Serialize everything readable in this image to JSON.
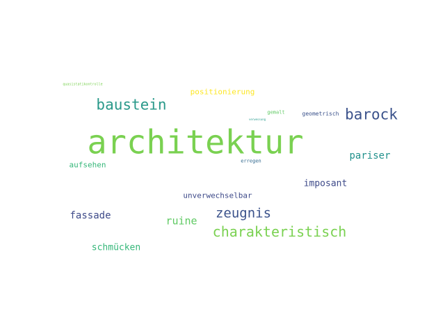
{
  "wordcloud": {
    "words": [
      {
        "text": "architektur",
        "color": "#7ad151"
      },
      {
        "text": "baustein",
        "color": "#2a998a"
      },
      {
        "text": "barock",
        "color": "#3b528b"
      },
      {
        "text": "positionierung",
        "color": "#fde725"
      },
      {
        "text": "quasistatikontrolle",
        "color": "#7ad151"
      },
      {
        "text": "gemalt",
        "color": "#5ec962"
      },
      {
        "text": "geometrisch",
        "color": "#3b528b"
      },
      {
        "text": "verwessung",
        "color": "#2a9d8f"
      },
      {
        "text": "erregen",
        "color": "#31688e"
      },
      {
        "text": "pariser",
        "color": "#21918c"
      },
      {
        "text": "aufsehen",
        "color": "#35b779"
      },
      {
        "text": "imposant",
        "color": "#3e4a89"
      },
      {
        "text": "unverwechselbar",
        "color": "#3e4a89"
      },
      {
        "text": "zeugnis",
        "color": "#3b528b"
      },
      {
        "text": "fassade",
        "color": "#3e4a89"
      },
      {
        "text": "ruine",
        "color": "#5ec962"
      },
      {
        "text": "charakteristisch",
        "color": "#7ad151"
      },
      {
        "text": "schmücken",
        "color": "#35b779"
      }
    ]
  }
}
